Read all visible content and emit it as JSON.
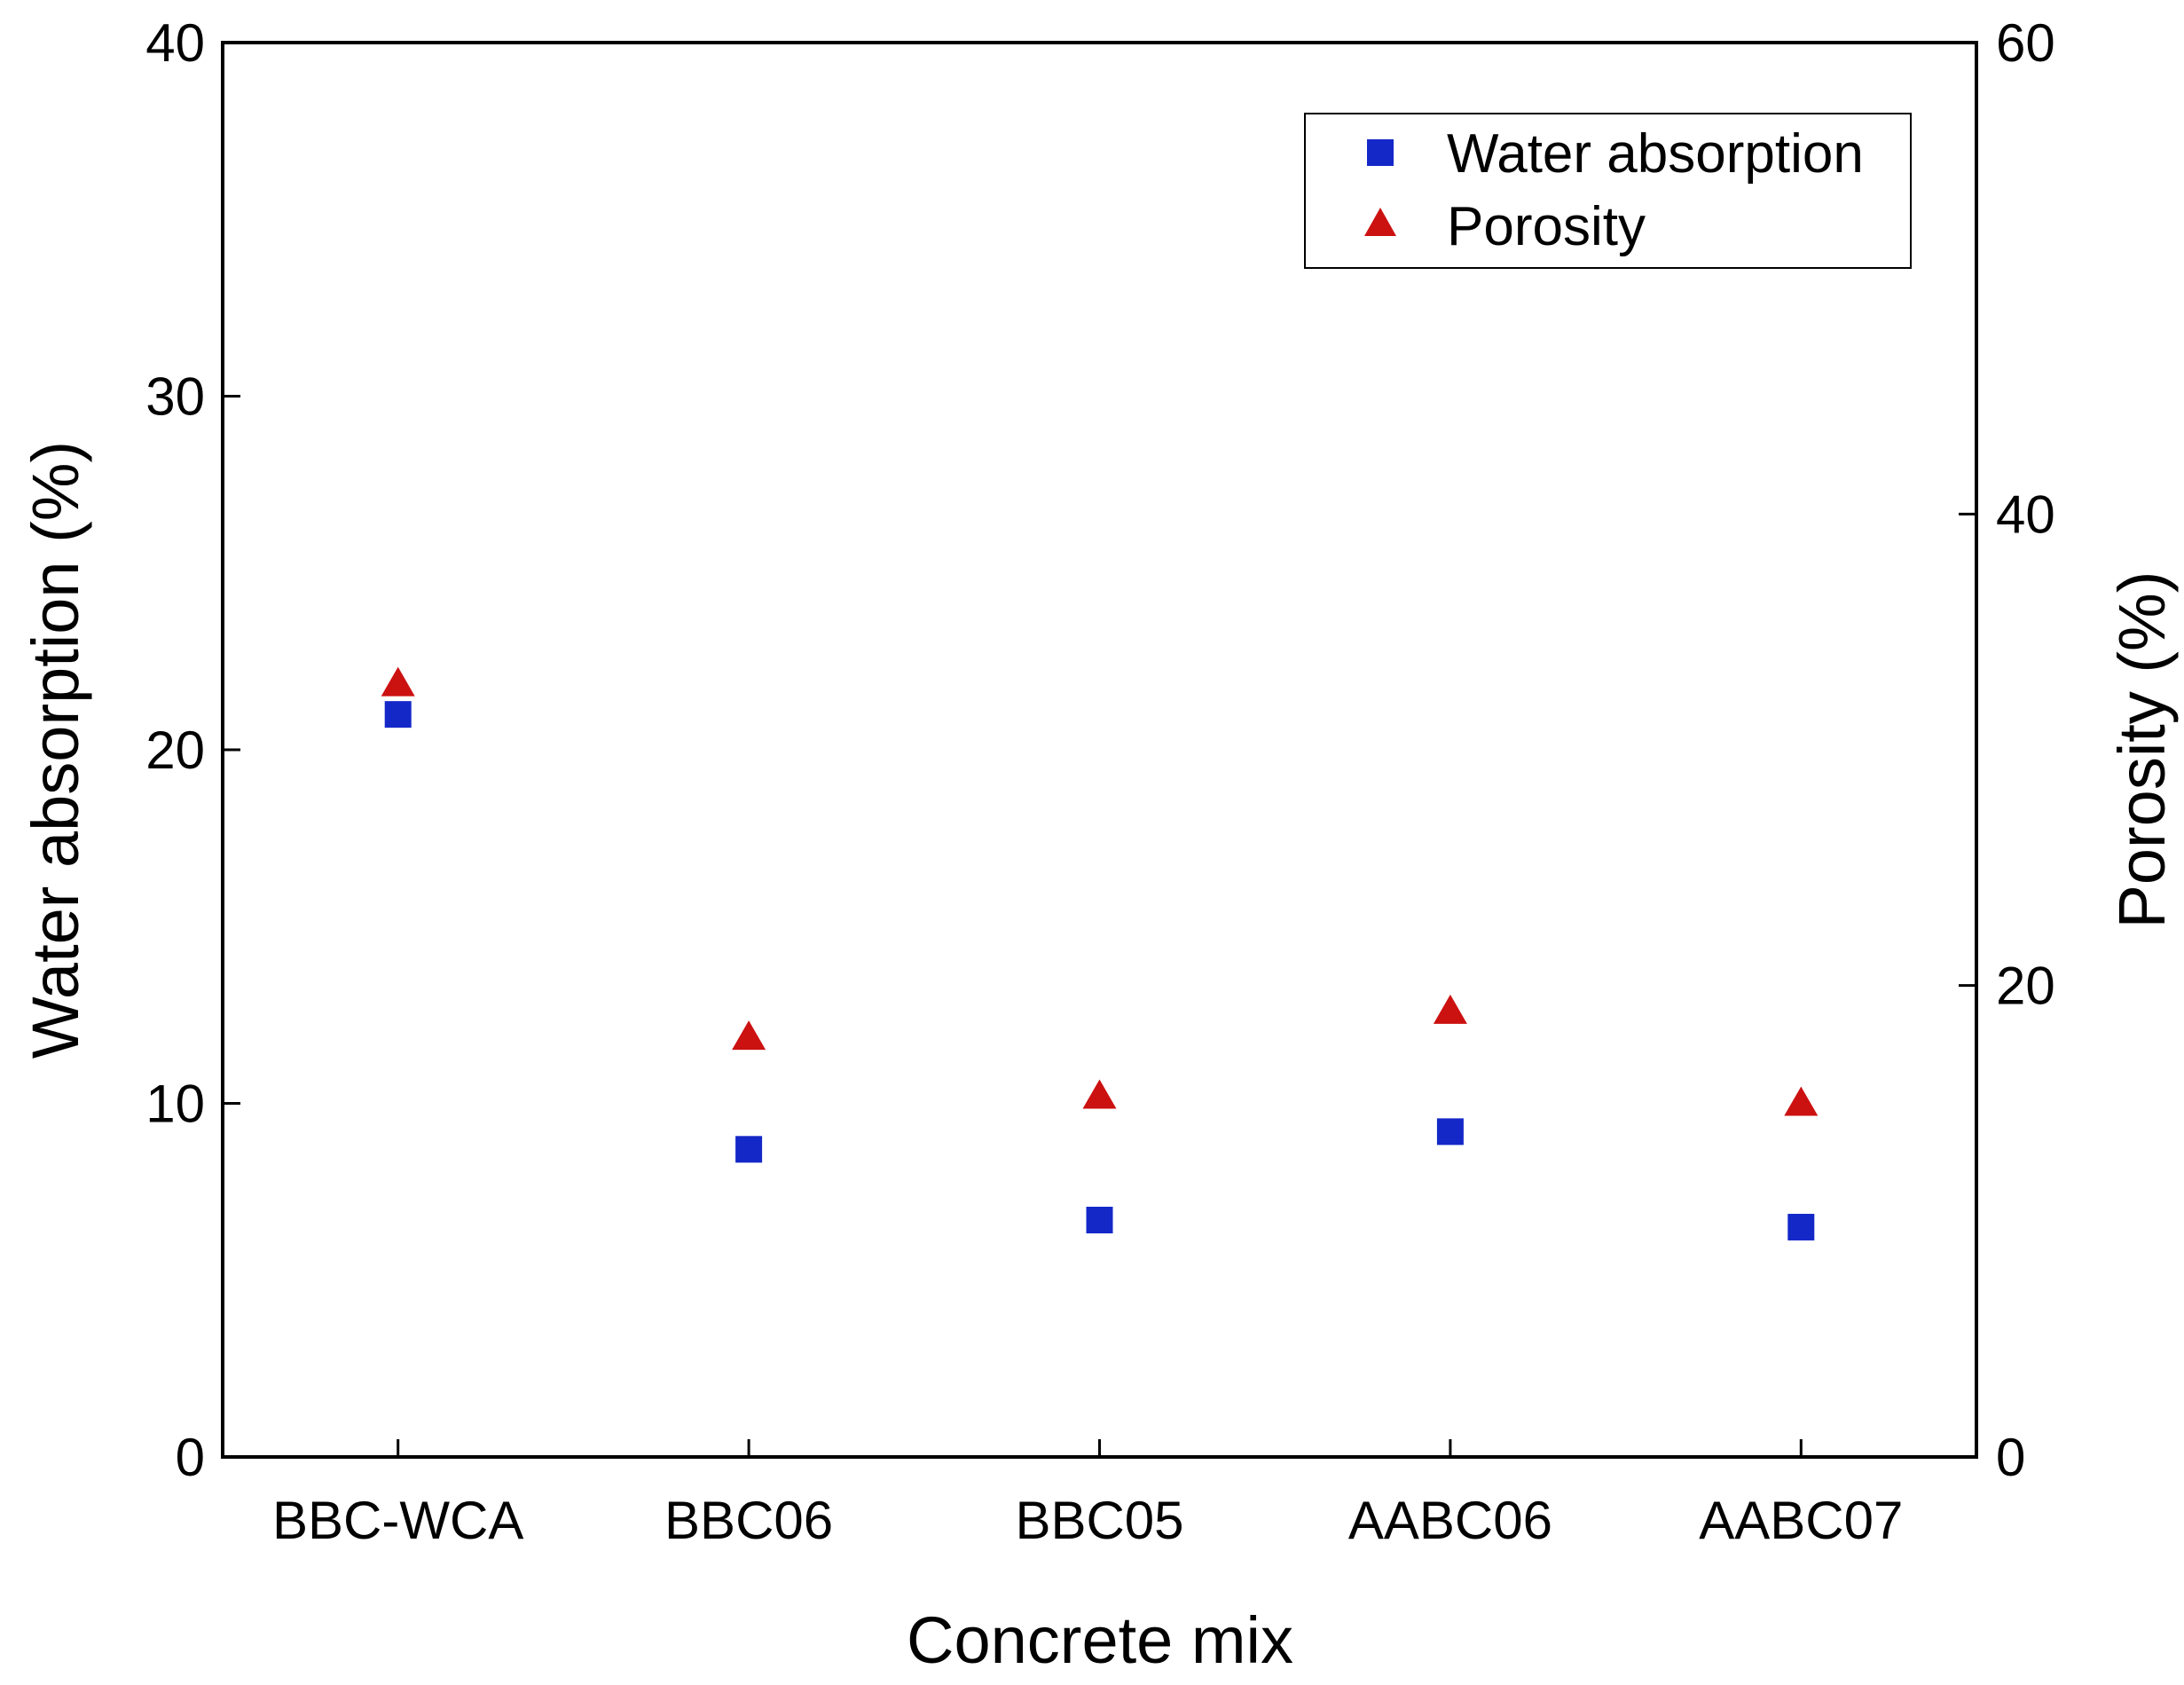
{
  "chart_data": {
    "type": "scatter",
    "title": "",
    "xlabel": "Concrete mix",
    "ylabel": "Water absorption (%)",
    "y2label": "Porosity (%)",
    "categories": [
      "BBC-WCA",
      "BBC06",
      "BBC05",
      "AABC06",
      "AABC07"
    ],
    "ylim": [
      0,
      40
    ],
    "y2lim": [
      0,
      60
    ],
    "yticks": [
      "0",
      "10",
      "20",
      "30",
      "40"
    ],
    "y2ticks": [
      "0",
      "20",
      "40",
      "60"
    ],
    "grid": false,
    "legend_position": "top-right",
    "series": [
      {
        "name": "Water absorption",
        "axis": "left",
        "marker": "square",
        "color": "#1428c8",
        "values": [
          21.0,
          8.7,
          6.7,
          9.2,
          6.5
        ]
      },
      {
        "name": "Porosity",
        "axis": "right",
        "marker": "triangle",
        "color": "#cc1111",
        "values": [
          32.8,
          17.8,
          15.3,
          18.9,
          15.0
        ]
      }
    ]
  }
}
